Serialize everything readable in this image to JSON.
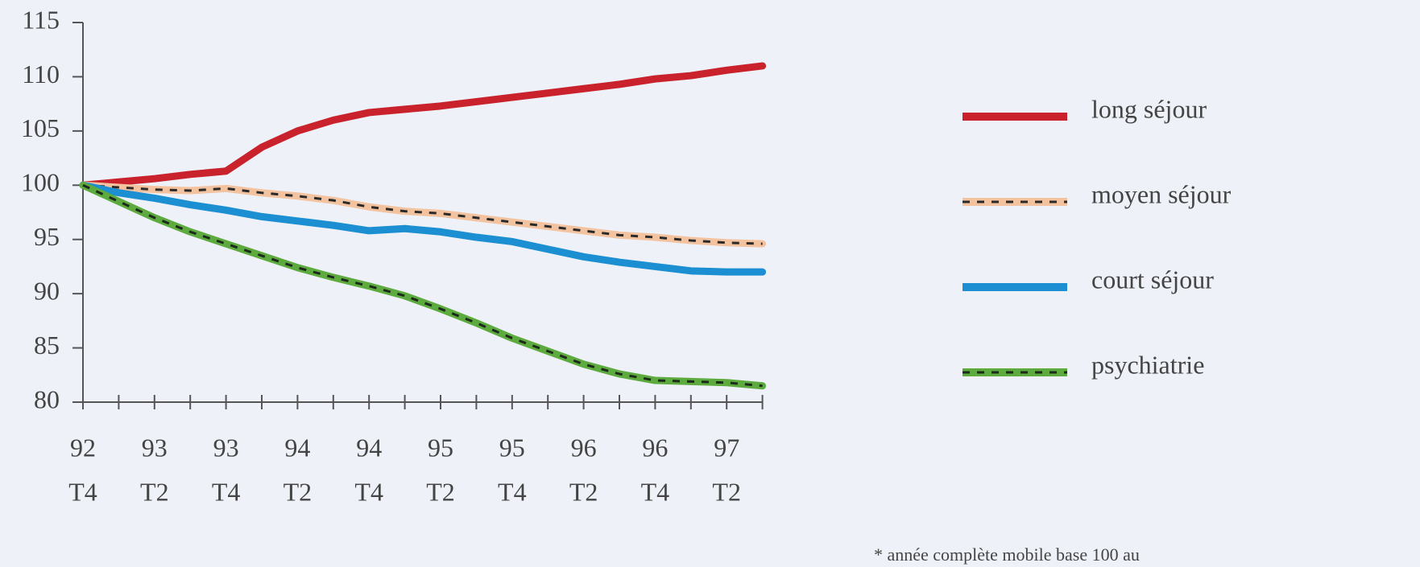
{
  "chart_data": {
    "type": "line",
    "categories": [
      [
        "92",
        "T4"
      ],
      null,
      [
        "93",
        "T2"
      ],
      null,
      [
        "93",
        "T4"
      ],
      null,
      [
        "94",
        "T2"
      ],
      null,
      [
        "94",
        "T4"
      ],
      null,
      [
        "95",
        "T2"
      ],
      null,
      [
        "95",
        "T4"
      ],
      null,
      [
        "96",
        "T2"
      ],
      null,
      [
        "96",
        "T4"
      ],
      null,
      [
        "97",
        "T2"
      ],
      null
    ],
    "series": [
      {
        "name": "long séjour",
        "color": "#c9222c",
        "values": [
          100,
          100.3,
          100.6,
          101,
          101.3,
          103.5,
          105,
          106,
          106.7,
          107,
          107.3,
          107.7,
          108.1,
          108.5,
          108.9,
          109.3,
          109.8,
          110.1,
          110.6,
          111
        ]
      },
      {
        "name": "moyen séjour",
        "color": "#f3c3a0",
        "dash": "#2a2a2a",
        "values": [
          100,
          99.8,
          99.6,
          99.5,
          99.7,
          99.3,
          99,
          98.6,
          98,
          97.6,
          97.4,
          97,
          96.6,
          96.2,
          95.8,
          95.4,
          95.2,
          94.9,
          94.7,
          94.6
        ]
      },
      {
        "name": "court séjour",
        "color": "#1b8fd2",
        "values": [
          100,
          99.3,
          98.8,
          98.2,
          97.7,
          97.1,
          96.7,
          96.3,
          95.8,
          96,
          95.7,
          95.2,
          94.8,
          94.1,
          93.4,
          92.9,
          92.5,
          92.1,
          92,
          92
        ]
      },
      {
        "name": "psychiatrie",
        "color": "#5daa3e",
        "dash": "#1c2a1c",
        "values": [
          100,
          98.5,
          97,
          95.7,
          94.6,
          93.5,
          92.4,
          91.5,
          90.7,
          89.8,
          88.6,
          87.3,
          85.9,
          84.7,
          83.5,
          82.6,
          82,
          81.9,
          81.8,
          81.5
        ]
      }
    ],
    "ylim": [
      80,
      115
    ],
    "yticks": [
      80,
      85,
      90,
      95,
      100,
      105,
      110,
      115
    ],
    "note": "* année complète mobile base 100 au"
  }
}
